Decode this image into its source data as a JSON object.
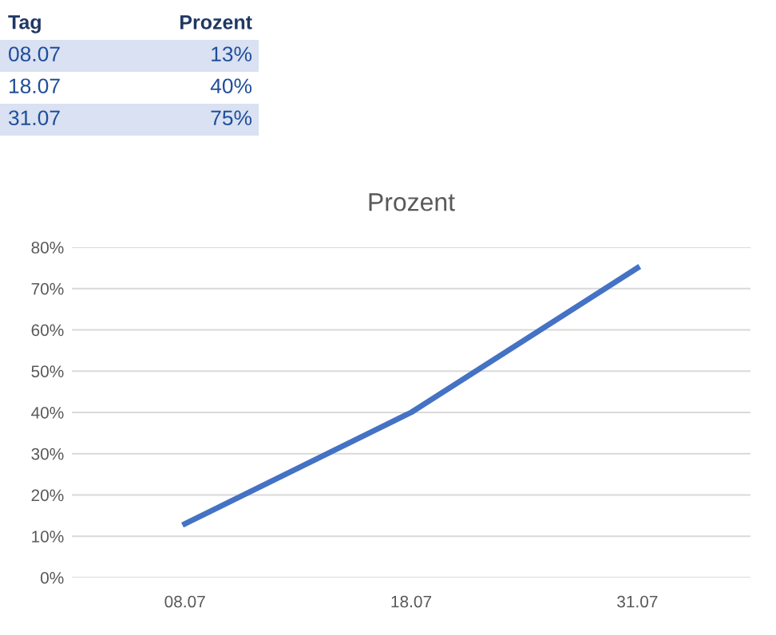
{
  "chart_data": {
    "type": "line",
    "title": "Prozent",
    "annotations": [
      "Tag",
      "Prozent",
      "08.07",
      "13%",
      "18.07",
      "40%",
      "31.07",
      "75%"
    ],
    "categories": [
      "08.07",
      "18.07",
      "31.07"
    ],
    "series": [
      {
        "color": "#4472c4",
        "values": [
          13,
          40,
          75
        ]
      }
    ],
    "ylim": [
      0,
      80
    ],
    "yticks": [
      {
        "value": 0,
        "label": "0%"
      },
      {
        "value": 10,
        "label": "10%"
      },
      {
        "value": 20,
        "label": "20%"
      },
      {
        "value": 30,
        "label": "30%"
      },
      {
        "value": 40,
        "label": "40%"
      },
      {
        "value": 50,
        "label": "50%"
      },
      {
        "value": 60,
        "label": "60%"
      },
      {
        "value": 70,
        "label": "70%"
      },
      {
        "value": 80,
        "label": "80%"
      }
    ],
    "grid": "y",
    "legend": false,
    "marker": "none",
    "line_style": "solid"
  }
}
